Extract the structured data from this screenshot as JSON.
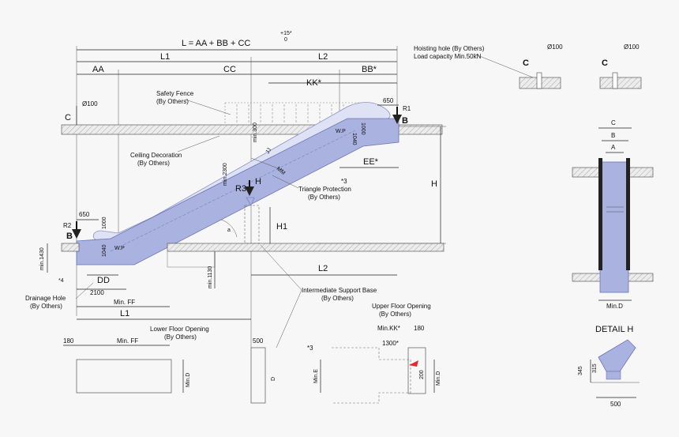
{
  "formula": {
    "text": "L = AA + BB + CC",
    "tol_plus": "+15*",
    "tol_zero": "0"
  },
  "top_dims": {
    "L1": "L1",
    "L2": "L2",
    "AA": "AA",
    "CC": "CC",
    "BB": "BB*",
    "KK": "KK*",
    "d650_top": "650",
    "R1": "R1",
    "B_top": "B"
  },
  "labels": {
    "safety_fence": "Safety Fence",
    "safety_fence_by": "(By Others)",
    "ceiling_decoration": "Ceiling Decoration",
    "ceiling_decoration_by": "(By Others)",
    "triangle_protection": "Triangle Protection",
    "triangle_protection_by": "(By Others)",
    "intermediate_support": "Intermediate Support Base",
    "intermediate_support_by": "(By Others)",
    "drainage_hole": "Drainage Hole",
    "drainage_hole_by": "(By Others)",
    "lower_floor_opening": "Lower Floor Opening",
    "lower_floor_opening_by": "(By Others)",
    "upper_floor_opening": "Upper Floor Opening",
    "upper_floor_opening_by": "(By Others)",
    "hoisting_hole": "Hoisting hole (By Others)",
    "load_capacity": "Load capacity Min.50kN"
  },
  "dims": {
    "d100": "Ø100",
    "C": "C",
    "min300": "min.300",
    "d1000_top": "1000",
    "d1040_top": "1040",
    "wp": "W.P",
    "min2300": "min.2300",
    "JJ": "JJ",
    "MM": "MM",
    "EE": "EE*",
    "star3": "*3",
    "H": "H",
    "R3": "R3",
    "H1": "H1",
    "a": "a",
    "R2": "R2",
    "B_bot": "B",
    "d650_bot": "650",
    "d1000_bot": "1000",
    "d1040_bot": "1040",
    "min1430": "min.1430",
    "min1130": "min.1130",
    "DD": "DD",
    "star4": "*4",
    "d2100": "2100",
    "minFF": "Min. FF",
    "L1_bot": "L1",
    "L2_bot": "L2"
  },
  "plan": {
    "d180_left": "180",
    "minFF": "Min. FF",
    "minD_left": "Min.D",
    "d500": "500",
    "D": "D",
    "star3": "*3",
    "minE": "Min.E",
    "minKK": "Min.KK*",
    "d180_right": "180",
    "d1300": "1300*",
    "d200": "200",
    "minD_right": "Min.D"
  },
  "right": {
    "C1": "C",
    "d100_1": "Ø100",
    "C2": "C",
    "d100_2": "Ø100",
    "C": "C",
    "B": "B",
    "A": "A",
    "minD": "Min.D",
    "detail_title": "DETAIL H",
    "d345": "345",
    "d315": "315",
    "d500": "500"
  },
  "colors": {
    "truss": "#aab2e0",
    "handrail": "#dfe2f4",
    "arrow_red": "#e8262c"
  }
}
